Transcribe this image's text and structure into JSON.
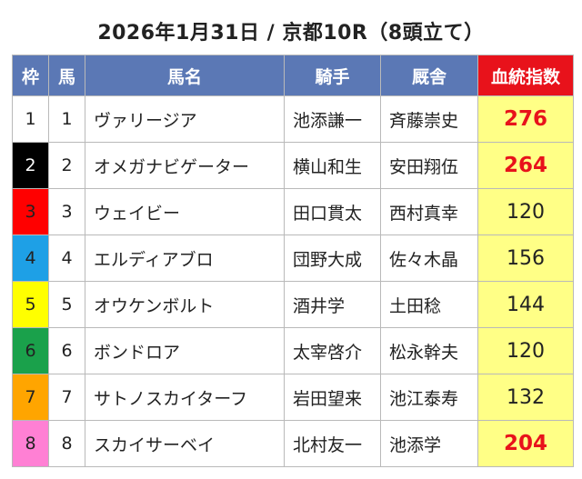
{
  "title": "2026年1月31日 / 京都10R（8頭立て）",
  "headers": {
    "waku": "枠",
    "num": "馬",
    "name": "馬名",
    "jockey": "騎手",
    "trainer": "厩舎",
    "score": "血統指数"
  },
  "colors": {
    "header_bg": "#5b78b5",
    "score_header_bg": "#e8121b",
    "score_cell_bg": "#ffff86",
    "high_score": "#e8121b"
  },
  "rows": [
    {
      "waku": "1",
      "num": "1",
      "name": "ヴァリージア",
      "jockey": "池添謙一",
      "trainer": "斉藤崇史",
      "score": "276",
      "high": true,
      "waku_bg": "#ffffff",
      "waku_fg": "#222222"
    },
    {
      "waku": "2",
      "num": "2",
      "name": "オメガナビゲーター",
      "jockey": "横山和生",
      "trainer": "安田翔伍",
      "score": "264",
      "high": true,
      "waku_bg": "#000000",
      "waku_fg": "#ffffff"
    },
    {
      "waku": "3",
      "num": "3",
      "name": "ウェイビー",
      "jockey": "田口貫太",
      "trainer": "西村真幸",
      "score": "120",
      "high": false,
      "waku_bg": "#ff0000",
      "waku_fg": "#222222"
    },
    {
      "waku": "4",
      "num": "4",
      "name": "エルディアブロ",
      "jockey": "団野大成",
      "trainer": "佐々木晶",
      "score": "156",
      "high": false,
      "waku_bg": "#1ea0e6",
      "waku_fg": "#222222"
    },
    {
      "waku": "5",
      "num": "5",
      "name": "オウケンボルト",
      "jockey": "酒井学",
      "trainer": "土田稔",
      "score": "144",
      "high": false,
      "waku_bg": "#ffff00",
      "waku_fg": "#222222"
    },
    {
      "waku": "6",
      "num": "6",
      "name": "ボンドロア",
      "jockey": "太宰啓介",
      "trainer": "松永幹夫",
      "score": "120",
      "high": false,
      "waku_bg": "#1aa14b",
      "waku_fg": "#222222"
    },
    {
      "waku": "7",
      "num": "7",
      "name": "サトノスカイターフ",
      "jockey": "岩田望来",
      "trainer": "池江泰寿",
      "score": "132",
      "high": false,
      "waku_bg": "#ffa500",
      "waku_fg": "#222222"
    },
    {
      "waku": "8",
      "num": "8",
      "name": "スカイサーベイ",
      "jockey": "北村友一",
      "trainer": "池添学",
      "score": "204",
      "high": true,
      "waku_bg": "#ff80d4",
      "waku_fg": "#222222"
    }
  ]
}
